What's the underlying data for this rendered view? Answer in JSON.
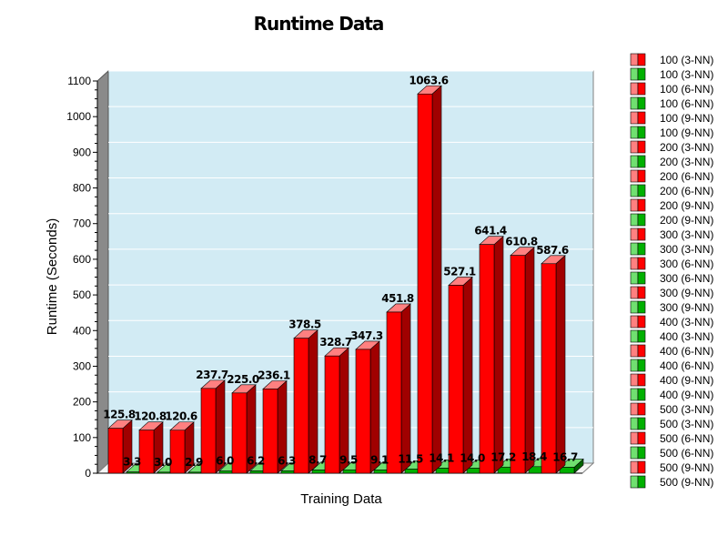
{
  "chart_data": {
    "type": "bar",
    "title": "Runtime Data",
    "xlabel": "Training Data",
    "ylabel": "Runtime (Seconds)",
    "ylim": [
      0,
      1100
    ],
    "yticks": [
      0,
      100,
      200,
      300,
      400,
      500,
      600,
      700,
      800,
      900,
      1000,
      1100
    ],
    "grid": true,
    "legend_position": "right",
    "series": [
      {
        "name": "red",
        "color": "#ff0000",
        "values": [
          125.8,
          120.8,
          120.6,
          237.7,
          225.0,
          236.1,
          378.5,
          328.7,
          347.3,
          451.8,
          1063.6,
          527.1,
          641.4,
          610.8,
          587.6
        ],
        "labels": [
          "125.8",
          "120.8",
          "120.6",
          "237.7",
          "225.0",
          "236.1",
          "378.5",
          "328.7",
          "347.3",
          "451.8",
          "1063.6",
          "527.1",
          "641.4",
          "610.8",
          "587.6"
        ]
      },
      {
        "name": "green",
        "color": "#00b000",
        "values": [
          3.3,
          3.0,
          2.9,
          6.0,
          6.2,
          6.3,
          8.7,
          9.5,
          9.1,
          11.5,
          14.1,
          14.0,
          17.2,
          18.4,
          16.7
        ],
        "labels": [
          "3.3",
          "3.0",
          "2.9",
          "6.0",
          "6.2",
          "6.3",
          "8.7",
          "9.5",
          "9.1",
          "11.5",
          "14.1",
          "14.0",
          "17.2",
          "18.4",
          "16.7"
        ]
      }
    ],
    "legend": [
      {
        "label": "100 (3-NN)",
        "color": "red"
      },
      {
        "label": "100 (3-NN)",
        "color": "green"
      },
      {
        "label": "100 (6-NN)",
        "color": "red"
      },
      {
        "label": "100 (6-NN)",
        "color": "green"
      },
      {
        "label": "100 (9-NN)",
        "color": "red"
      },
      {
        "label": "100 (9-NN)",
        "color": "green"
      },
      {
        "label": "200 (3-NN)",
        "color": "red"
      },
      {
        "label": "200 (3-NN)",
        "color": "green"
      },
      {
        "label": "200 (6-NN)",
        "color": "red"
      },
      {
        "label": "200 (6-NN)",
        "color": "green"
      },
      {
        "label": "200 (9-NN)",
        "color": "red"
      },
      {
        "label": "200 (9-NN)",
        "color": "green"
      },
      {
        "label": "300 (3-NN)",
        "color": "red"
      },
      {
        "label": "300 (3-NN)",
        "color": "green"
      },
      {
        "label": "300 (6-NN)",
        "color": "red"
      },
      {
        "label": "300 (6-NN)",
        "color": "green"
      },
      {
        "label": "300 (9-NN)",
        "color": "red"
      },
      {
        "label": "300 (9-NN)",
        "color": "green"
      },
      {
        "label": "400 (3-NN)",
        "color": "red"
      },
      {
        "label": "400 (3-NN)",
        "color": "green"
      },
      {
        "label": "400 (6-NN)",
        "color": "red"
      },
      {
        "label": "400 (6-NN)",
        "color": "green"
      },
      {
        "label": "400 (9-NN)",
        "color": "red"
      },
      {
        "label": "400 (9-NN)",
        "color": "green"
      },
      {
        "label": "500 (3-NN)",
        "color": "red"
      },
      {
        "label": "500 (3-NN)",
        "color": "green"
      },
      {
        "label": "500 (6-NN)",
        "color": "red"
      },
      {
        "label": "500 (6-NN)",
        "color": "green"
      },
      {
        "label": "500 (9-NN)",
        "color": "red"
      },
      {
        "label": "500 (9-NN)",
        "color": "green"
      }
    ]
  }
}
